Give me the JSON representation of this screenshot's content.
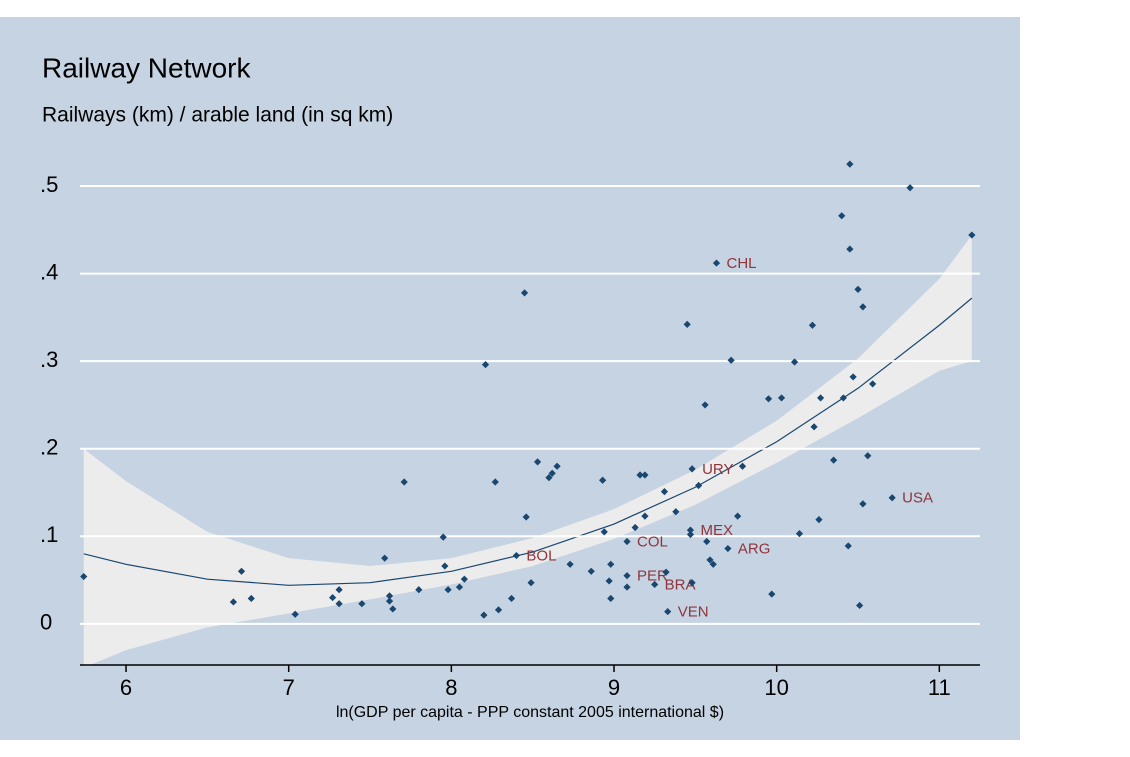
{
  "chart_data": {
    "type": "scatter",
    "title": "Railway Network",
    "subtitle": "Railways (km) / arable land (in sq km)",
    "x_label": "ln(GDP per capita - PPP constant 2005 international $)",
    "xlim": [
      5.717,
      11.25
    ],
    "ylim": [
      -0.047,
      0.54
    ],
    "xticks": [
      6,
      7,
      8,
      9,
      10,
      11
    ],
    "yticks": [
      0,
      {
        "value": 0.1,
        "label": ".1"
      },
      {
        "value": 0.2,
        "label": ".2"
      },
      {
        "value": 0.3,
        "label": ".3"
      },
      {
        "value": 0.4,
        "label": ".4"
      },
      {
        "value": 0.5,
        "label": ".5"
      }
    ],
    "grid": true,
    "point_color": "#1a476f",
    "label_color": "#90353b",
    "x": [
      5.74,
      6.66,
      6.71,
      6.77,
      7.04,
      7.27,
      7.31,
      7.31,
      7.45,
      7.59,
      7.62,
      7.62,
      7.64,
      7.71,
      7.8,
      7.95,
      7.96,
      7.98,
      8.05,
      8.08,
      8.21,
      8.2,
      8.27,
      8.29,
      8.37,
      8.4,
      8.45,
      8.46,
      8.49,
      8.53,
      8.6,
      8.62,
      8.65,
      8.73,
      8.86,
      8.93,
      8.94,
      8.97,
      8.98,
      8.98,
      9.08,
      9.08,
      9.08,
      9.13,
      9.16,
      9.19,
      9.19,
      9.25,
      9.31,
      9.32,
      9.33,
      9.38,
      9.45,
      9.47,
      9.47,
      9.48,
      9.48,
      9.52,
      9.56,
      9.57,
      9.59,
      9.61,
      9.63,
      9.7,
      9.72,
      9.76,
      9.79,
      9.95,
      9.97,
      10.03,
      10.11,
      10.14,
      10.22,
      10.23,
      10.26,
      10.27,
      10.35,
      10.4,
      10.41,
      10.44,
      10.45,
      10.45,
      10.47,
      10.5,
      10.51,
      10.53,
      10.53,
      10.56,
      10.59,
      10.71,
      10.82,
      11.2
    ],
    "values": [
      0.054,
      0.025,
      0.06,
      0.029,
      0.011,
      0.03,
      0.039,
      0.023,
      0.023,
      0.075,
      0.026,
      0.032,
      0.017,
      0.162,
      0.039,
      0.099,
      0.066,
      0.039,
      0.042,
      0.051,
      0.296,
      0.01,
      0.162,
      0.016,
      0.029,
      0.078,
      0.378,
      0.122,
      0.047,
      0.185,
      0.167,
      0.172,
      0.18,
      0.068,
      0.06,
      0.164,
      0.105,
      0.049,
      0.068,
      0.029,
      0.042,
      0.055,
      0.094,
      0.11,
      0.17,
      0.17,
      0.123,
      0.045,
      0.151,
      0.059,
      0.014,
      0.128,
      0.342,
      0.102,
      0.107,
      0.047,
      0.177,
      0.158,
      0.25,
      0.094,
      0.073,
      0.068,
      0.412,
      0.086,
      0.301,
      0.123,
      0.18,
      0.257,
      0.034,
      0.258,
      0.299,
      0.103,
      0.341,
      0.225,
      0.119,
      0.258,
      0.187,
      0.466,
      0.258,
      0.089,
      0.525,
      0.428,
      0.282,
      0.382,
      0.021,
      0.137,
      0.362,
      0.192,
      0.274,
      0.144,
      0.498,
      0.444
    ],
    "labels": [
      null,
      null,
      null,
      null,
      null,
      null,
      null,
      null,
      null,
      null,
      null,
      null,
      null,
      null,
      null,
      null,
      null,
      null,
      null,
      null,
      null,
      null,
      null,
      null,
      null,
      "BOL",
      null,
      null,
      null,
      null,
      null,
      null,
      null,
      null,
      null,
      null,
      null,
      null,
      null,
      null,
      null,
      "PER",
      "COL",
      null,
      null,
      null,
      null,
      "BRA",
      null,
      null,
      "VEN",
      null,
      null,
      null,
      "MEX",
      null,
      "URY",
      null,
      null,
      null,
      null,
      null,
      "CHL",
      "ARG",
      null,
      null,
      null,
      null,
      null,
      null,
      null,
      null,
      null,
      null,
      null,
      null,
      null,
      null,
      null,
      null,
      null,
      null,
      null,
      null,
      null,
      null,
      null,
      null,
      null,
      "USA",
      null,
      null
    ],
    "fit": {
      "color": "#1a476f",
      "band_color": "#ececec",
      "x": [
        5.74,
        6,
        6.5,
        7,
        7.5,
        8,
        8.5,
        9,
        9.5,
        10,
        10.5,
        11,
        11.2
      ],
      "values": [
        0.08,
        0.068,
        0.051,
        0.044,
        0.047,
        0.06,
        0.082,
        0.114,
        0.156,
        0.208,
        0.269,
        0.341,
        0.372
      ],
      "lower": [
        -0.05,
        -0.03,
        -0.004,
        0.012,
        0.028,
        0.045,
        0.066,
        0.097,
        0.136,
        0.184,
        0.235,
        0.289,
        0.3
      ],
      "upper": [
        0.2,
        0.163,
        0.105,
        0.075,
        0.066,
        0.075,
        0.098,
        0.131,
        0.176,
        0.232,
        0.303,
        0.394,
        0.444
      ]
    }
  }
}
